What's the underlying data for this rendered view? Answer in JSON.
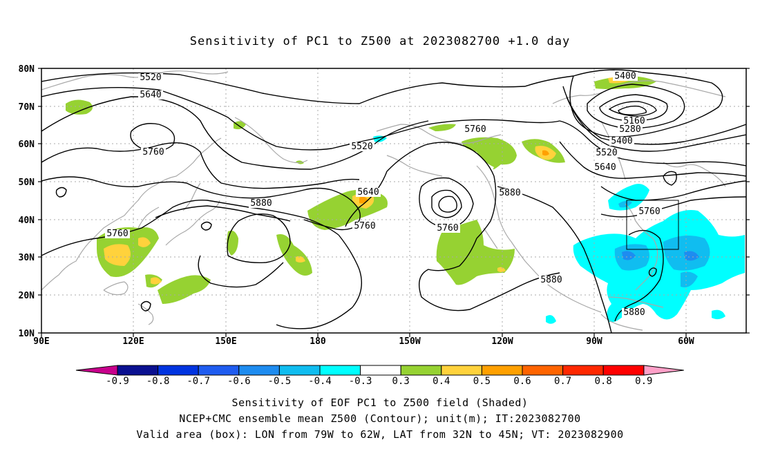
{
  "title": "Sensitivity of PC1 to Z500 at 2023082700 +1.0 day",
  "lat_labels": [
    "80N",
    "70N",
    "60N",
    "50N",
    "40N",
    "30N",
    "20N",
    "10N"
  ],
  "lon_labels": [
    "90E",
    "120E",
    "150E",
    "180",
    "150W",
    "120W",
    "90W",
    "60W"
  ],
  "contour_labels": [
    {
      "text": "5400",
      "name": "contour-label-5400-top"
    },
    {
      "text": "5520",
      "name": "contour-label-5520-west"
    },
    {
      "text": "5640",
      "name": "contour-label-5640-west"
    },
    {
      "text": "5760",
      "name": "contour-label-5760-siberia"
    },
    {
      "text": "5160",
      "name": "contour-label-5160"
    },
    {
      "text": "5280",
      "name": "contour-label-5280"
    },
    {
      "text": "5400",
      "name": "contour-label-5400-east"
    },
    {
      "text": "5520",
      "name": "contour-label-5520-east"
    },
    {
      "text": "5640",
      "name": "contour-label-5640-east"
    },
    {
      "text": "5760",
      "name": "contour-label-5760-alaska"
    },
    {
      "text": "5520",
      "name": "contour-label-5520-bering"
    },
    {
      "text": "5640",
      "name": "contour-label-5640-dateline"
    },
    {
      "text": "5760",
      "name": "contour-label-5760-dateline"
    },
    {
      "text": "5880",
      "name": "contour-label-5880-pacific"
    },
    {
      "text": "5760",
      "name": "contour-label-5760-china"
    },
    {
      "text": "5760",
      "name": "contour-label-5760-low"
    },
    {
      "text": "5880",
      "name": "contour-label-5880-westcoast"
    },
    {
      "text": "5760",
      "name": "contour-label-5760-box"
    },
    {
      "text": "5880",
      "name": "contour-label-5880-mexico"
    },
    {
      "text": "5880",
      "name": "contour-label-5880-caribbean"
    }
  ],
  "colorbar": {
    "labels": [
      "-0.9",
      "-0.8",
      "-0.7",
      "-0.6",
      "-0.5",
      "-0.4",
      "-0.3",
      "0.3",
      "0.4",
      "0.5",
      "0.6",
      "0.7",
      "0.8",
      "0.9"
    ],
    "colors": [
      "#0a1090",
      "#0033e0",
      "#1f5cf0",
      "#1e8cf0",
      "#10bdf0",
      "#00ffff",
      "#ffffff",
      "#96d232",
      "#ffd23c",
      "#ffa000",
      "#ff6400",
      "#ff2800",
      "#ff0000"
    ],
    "left_arrow_color": "#c8008c",
    "right_arrow_color": "#ffa0c8"
  },
  "captions": [
    "Sensitivity of EOF PC1 to Z500 field (Shaded)",
    "NCEP+CMC ensemble mean Z500 (Contour); unit(m); IT:2023082700",
    "Valid area (box): LON from 79W to 62W, LAT from 32N to 45N; VT: 2023082900"
  ]
}
